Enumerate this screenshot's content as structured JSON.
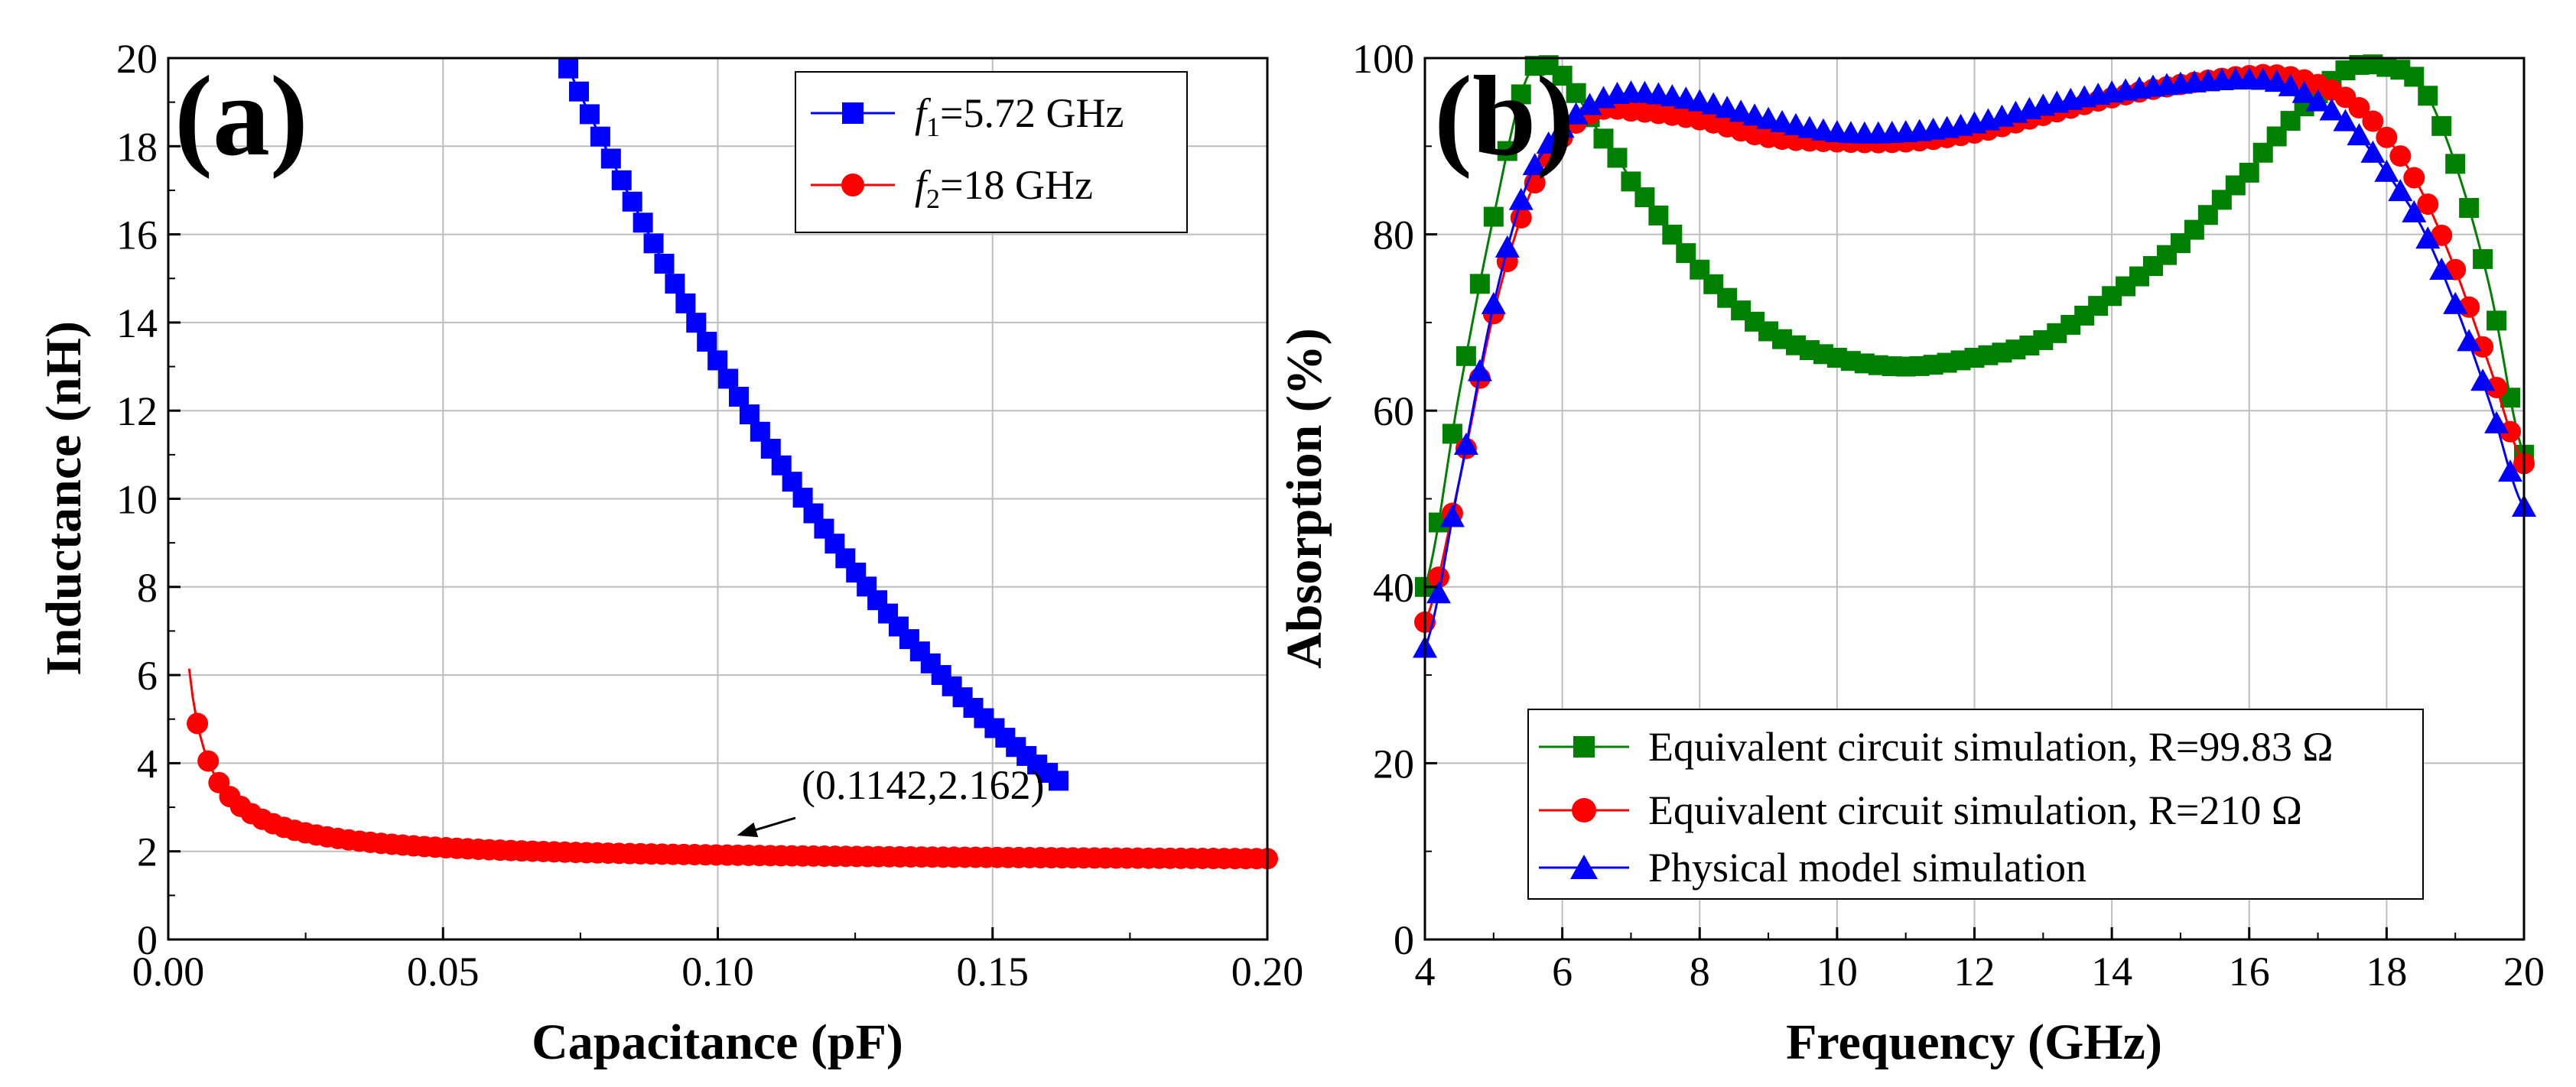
{
  "chart_data": [
    {
      "type": "line",
      "panel_label": "(a)",
      "title": "",
      "xlabel": "Capacitance (pF)",
      "ylabel": "Inductance (nH)",
      "xlim": [
        0,
        0.2
      ],
      "ylim": [
        0,
        20
      ],
      "xticks": [
        "0.00",
        "0.05",
        "0.10",
        "0.15",
        "0.20"
      ],
      "yticks": [
        "0",
        "2",
        "4",
        "6",
        "8",
        "10",
        "12",
        "14",
        "16",
        "18",
        "20"
      ],
      "grid": true,
      "legend_position": "top-right",
      "series": [
        {
          "name": "f1=5.72 GHz",
          "legend_italic": "f",
          "legend_sub": "1",
          "legend_rest": "=5.72 GHz",
          "color": "#0000ff",
          "marker": "square",
          "model": {
            "kind": "quadratic",
            "a": 1011.9,
            "b": -418.8,
            "c": 44.89
          },
          "x_range": [
            0.0282,
            0.162
          ],
          "marker_count": 70
        },
        {
          "name": "f2=18 GHz",
          "legend_italic": "f",
          "legend_sub": "2",
          "legend_rest": "=18 GHz",
          "color": "#ff0000",
          "marker": "circle",
          "model": {
            "kind": "reciprocal",
            "a": 1.6667,
            "b": 0.0782
          },
          "x_range": [
            0.0,
            0.2
          ],
          "x_line_start": 0.0038,
          "marker_start": 0.0053,
          "marker_count": 100
        }
      ],
      "annotation": {
        "text": "(0.1142,2.162)",
        "point": [
          0.1032,
          2.35
        ]
      }
    },
    {
      "type": "line",
      "panel_label": "(b)",
      "title": "",
      "xlabel": "Frequency (GHz)",
      "ylabel": "Absorption (%)",
      "xlim": [
        4,
        20
      ],
      "ylim": [
        0,
        100
      ],
      "xticks": [
        "4",
        "6",
        "8",
        "10",
        "12",
        "14",
        "16",
        "18",
        "20"
      ],
      "yticks": [
        "0",
        "20",
        "40",
        "60",
        "80",
        "100"
      ],
      "grid": true,
      "legend_position": "bottom-center",
      "series": [
        {
          "name": "Equivalent circuit simulation, R=99.83 Ω",
          "color": "#008000",
          "marker": "square",
          "x": [
            4,
            4.5,
            5,
            5.5,
            6,
            6.5,
            7,
            8,
            9,
            10,
            11,
            12,
            13,
            14,
            15,
            16,
            16.5,
            17,
            17.5,
            18,
            18.5,
            19,
            19.5,
            20
          ],
          "y": [
            40,
            62,
            82,
            98,
            98,
            92,
            86,
            76,
            69,
            66,
            65,
            66,
            68,
            73,
            79,
            87,
            92,
            96,
            99,
            99,
            97,
            88,
            74,
            55
          ]
        },
        {
          "name": "Equivalent circuit simulation, R=210 Ω",
          "color": "#ff0000",
          "marker": "circle",
          "x": [
            4,
            4.5,
            5,
            5.5,
            6,
            6.5,
            7,
            8,
            9,
            10,
            11,
            12,
            13,
            14,
            15,
            16,
            16.5,
            17,
            17.5,
            18,
            18.5,
            19,
            19.5,
            20
          ],
          "y": [
            36,
            52,
            71,
            84,
            91,
            94,
            94,
            93,
            91,
            90.5,
            90.5,
            91.5,
            93.5,
            95.5,
            97,
            98,
            98,
            97,
            95,
            91,
            85,
            76,
            65,
            54
          ]
        },
        {
          "name": "Physical model simulation",
          "color": "#0000ff",
          "marker": "triangle",
          "x": [
            4,
            4.5,
            5,
            5.5,
            6,
            6.5,
            7,
            8,
            9,
            10,
            11,
            12,
            13,
            14,
            15,
            16,
            16.5,
            17,
            17.5,
            18,
            18.5,
            19,
            19.5,
            20
          ],
          "y": [
            33,
            52,
            72,
            86,
            92,
            95,
            96,
            95,
            93,
            91.5,
            91.5,
            92.5,
            94.5,
            96,
            97,
            97.5,
            97,
            95,
            92,
            87,
            81,
            72,
            61,
            49
          ]
        }
      ]
    }
  ]
}
